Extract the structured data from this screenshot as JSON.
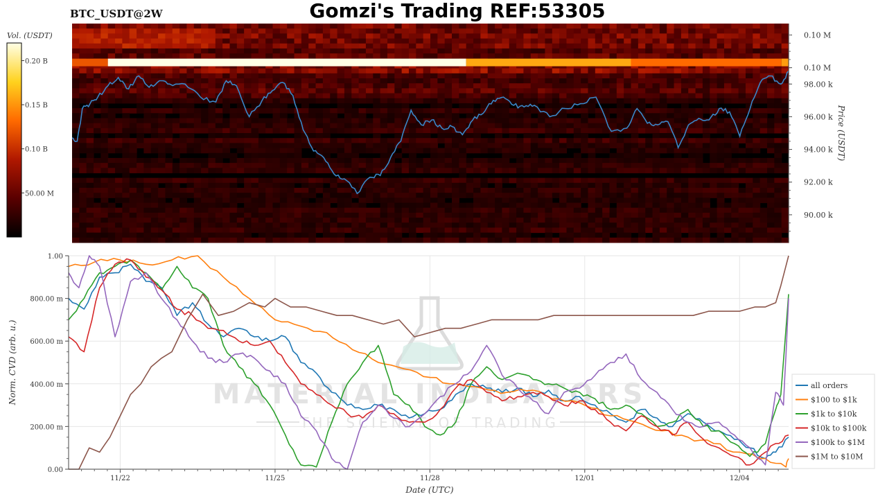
{
  "header": {
    "symbol": "BTC_USDT@2W",
    "title": "Gomzi's Trading REF:53305"
  },
  "watermark": {
    "line1": "MATERIAL INDICATORS",
    "line2": "THE SCIENCE OF TRADING",
    "color": "#e3e3e3"
  },
  "chart_data": [
    {
      "type": "heatmap",
      "colorbar": {
        "label": "Vol. (USDT)",
        "ticks": [
          "0.20 B",
          "0.15 B",
          "0.10 B",
          "50.00 M"
        ],
        "tick_values_b": [
          0.2,
          0.15,
          0.1,
          0.05
        ],
        "range_b": [
          0,
          0.22
        ],
        "colors": [
          "#000000",
          "#5a0000",
          "#b01800",
          "#ff6a00",
          "#ffd21e",
          "#ffffe6"
        ]
      },
      "ylabel": "Price (USDT)",
      "yticks": [
        "0.10 M",
        "0.10 M",
        "98.00 k",
        "96.00 k",
        "94.00 k",
        "92.00 k",
        "90.00 k"
      ],
      "ytick_values_k": [
        101,
        99,
        98,
        96,
        94,
        92,
        90
      ],
      "ylim_k": [
        88.3,
        101.7
      ],
      "price_line_color": "#3a87c8",
      "price_series_k": {
        "x_days": [
          0,
          0.1,
          0.2,
          0.35,
          0.5,
          0.7,
          0.9,
          1.1,
          1.3,
          1.5,
          1.7,
          1.9,
          2.2,
          2.5,
          2.8,
          3.0,
          3.2,
          3.45,
          3.7,
          3.9,
          4.1,
          4.3,
          4.5,
          4.7,
          4.9,
          5.1,
          5.3,
          5.55,
          5.8,
          6.0,
          6.2,
          6.4,
          6.6,
          6.8,
          7.0,
          7.2,
          7.4,
          7.6,
          7.8,
          8.0,
          8.2,
          8.4,
          8.6,
          8.8,
          9.0,
          9.3,
          9.6,
          9.9,
          10.2,
          10.5,
          10.8,
          11.0,
          11.2,
          11.4,
          11.6,
          11.8,
          12.0,
          12.2,
          12.4,
          12.6,
          12.8,
          13.0,
          13.2,
          13.4,
          13.6,
          13.8,
          13.95
        ],
        "y_k": [
          94.7,
          94.5,
          96.5,
          96.8,
          97.2,
          97.9,
          98.4,
          97.7,
          98.5,
          97.8,
          98.2,
          98.0,
          98.0,
          97.2,
          96.9,
          98.2,
          97.9,
          96.0,
          97.0,
          97.6,
          98.1,
          97.3,
          95.2,
          93.9,
          93.5,
          92.5,
          92.2,
          91.3,
          92.3,
          92.4,
          93.5,
          94.5,
          96.4,
          95.5,
          95.8,
          95.3,
          95.4,
          94.9,
          95.8,
          96.2,
          97.0,
          97.2,
          96.7,
          96.6,
          96.7,
          96.0,
          96.5,
          96.8,
          97.2,
          95.1,
          95.3,
          96.5,
          95.6,
          95.5,
          95.7,
          94.1,
          95.5,
          95.9,
          95.8,
          96.5,
          96.3,
          94.8,
          96.5,
          98.1,
          98.5,
          98.0,
          98.8
        ]
      }
    },
    {
      "type": "line",
      "xlabel": "Date (UTC)",
      "ylabel": "Norm. CVD (arb. u.)",
      "xticks": [
        "11/22",
        "11/25",
        "11/28",
        "12/01",
        "12/04"
      ],
      "xtick_days": [
        1,
        4,
        7,
        10,
        13
      ],
      "xlim_days": [
        0,
        13.95
      ],
      "yticks": [
        "1.00",
        "800.00 m",
        "600.00 m",
        "400.00 m",
        "200.00 m",
        "0.00"
      ],
      "ytick_values": [
        1.0,
        0.8,
        0.6,
        0.4,
        0.2,
        0.0
      ],
      "ylim": [
        0,
        1.0
      ],
      "grid": true,
      "legend_position": "right",
      "series": [
        {
          "name": "all orders",
          "color": "#1f77b4",
          "x": [
            0,
            0.3,
            0.6,
            0.9,
            1.2,
            1.5,
            1.8,
            2.1,
            2.4,
            2.7,
            3.0,
            3.3,
            3.6,
            3.9,
            4.2,
            4.5,
            4.8,
            5.1,
            5.4,
            5.7,
            6.0,
            6.3,
            6.6,
            6.9,
            7.2,
            7.5,
            7.8,
            8.1,
            8.4,
            8.7,
            9.0,
            9.3,
            9.6,
            9.9,
            10.2,
            10.5,
            10.8,
            11.1,
            11.4,
            11.7,
            12.0,
            12.3,
            12.6,
            12.9,
            13.2,
            13.5,
            13.7,
            13.95
          ],
          "y": [
            0.8,
            0.75,
            0.9,
            0.92,
            0.96,
            0.88,
            0.85,
            0.72,
            0.78,
            0.68,
            0.62,
            0.66,
            0.62,
            0.6,
            0.62,
            0.5,
            0.45,
            0.36,
            0.3,
            0.28,
            0.3,
            0.28,
            0.24,
            0.26,
            0.28,
            0.35,
            0.4,
            0.38,
            0.36,
            0.38,
            0.34,
            0.37,
            0.32,
            0.34,
            0.3,
            0.26,
            0.22,
            0.28,
            0.24,
            0.2,
            0.26,
            0.22,
            0.18,
            0.14,
            0.1,
            0.05,
            0.08,
            0.15
          ]
        },
        {
          "name": "$100 to $1k",
          "color": "#ff7f0e",
          "x": [
            0,
            0.5,
            1.0,
            1.5,
            2.0,
            2.5,
            3.0,
            3.5,
            4.0,
            4.5,
            5.0,
            5.5,
            6.0,
            6.5,
            7.0,
            7.5,
            8.0,
            8.5,
            9.0,
            9.5,
            10.0,
            10.5,
            11.0,
            11.5,
            12.0,
            12.5,
            13.0,
            13.5,
            13.9,
            13.95
          ],
          "y": [
            0.95,
            0.97,
            0.98,
            0.96,
            0.98,
            1.0,
            0.9,
            0.8,
            0.7,
            0.67,
            0.64,
            0.56,
            0.5,
            0.47,
            0.43,
            0.4,
            0.38,
            0.36,
            0.37,
            0.33,
            0.3,
            0.25,
            0.22,
            0.18,
            0.15,
            0.12,
            0.08,
            0.05,
            0.01,
            0.05
          ]
        },
        {
          "name": "$1k to $10k",
          "color": "#2ca02c",
          "x": [
            0,
            0.3,
            0.6,
            0.9,
            1.2,
            1.5,
            1.8,
            2.1,
            2.4,
            2.7,
            3.0,
            3.3,
            3.6,
            3.9,
            4.2,
            4.5,
            4.8,
            5.1,
            5.4,
            5.7,
            6.0,
            6.3,
            6.6,
            6.9,
            7.2,
            7.5,
            7.8,
            8.1,
            8.4,
            8.7,
            9.0,
            9.3,
            9.6,
            9.9,
            10.2,
            10.5,
            10.8,
            11.1,
            11.4,
            11.7,
            12.0,
            12.3,
            12.6,
            12.9,
            13.2,
            13.5,
            13.7,
            13.8,
            13.95
          ],
          "y": [
            0.7,
            0.8,
            0.92,
            0.95,
            0.98,
            0.92,
            0.84,
            0.95,
            0.85,
            0.8,
            0.58,
            0.48,
            0.4,
            0.3,
            0.16,
            0.02,
            0.01,
            0.22,
            0.4,
            0.5,
            0.58,
            0.35,
            0.3,
            0.2,
            0.16,
            0.22,
            0.4,
            0.48,
            0.42,
            0.45,
            0.42,
            0.4,
            0.38,
            0.36,
            0.33,
            0.28,
            0.3,
            0.26,
            0.2,
            0.22,
            0.28,
            0.2,
            0.18,
            0.12,
            0.06,
            0.12,
            0.28,
            0.35,
            0.82
          ]
        },
        {
          "name": "$10k to $100k",
          "color": "#d62728",
          "x": [
            0,
            0.3,
            0.6,
            0.9,
            1.2,
            1.5,
            1.8,
            2.1,
            2.4,
            2.7,
            3.0,
            3.3,
            3.6,
            3.9,
            4.2,
            4.5,
            4.8,
            5.1,
            5.4,
            5.7,
            6.0,
            6.3,
            6.6,
            6.9,
            7.2,
            7.5,
            7.8,
            8.1,
            8.4,
            8.7,
            9.0,
            9.3,
            9.6,
            9.9,
            10.2,
            10.5,
            10.8,
            11.1,
            11.4,
            11.7,
            12.0,
            12.3,
            12.6,
            12.9,
            13.2,
            13.5,
            13.7,
            13.95
          ],
          "y": [
            0.62,
            0.55,
            0.85,
            0.96,
            0.98,
            0.9,
            0.84,
            0.75,
            0.72,
            0.66,
            0.65,
            0.6,
            0.58,
            0.6,
            0.5,
            0.4,
            0.35,
            0.3,
            0.26,
            0.24,
            0.3,
            0.26,
            0.22,
            0.22,
            0.28,
            0.38,
            0.42,
            0.36,
            0.32,
            0.34,
            0.36,
            0.34,
            0.3,
            0.32,
            0.28,
            0.22,
            0.18,
            0.25,
            0.2,
            0.16,
            0.22,
            0.14,
            0.1,
            0.06,
            0.02,
            0.08,
            0.12,
            0.16
          ]
        },
        {
          "name": "$100k to $1M",
          "color": "#9467bd",
          "x": [
            0,
            0.2,
            0.4,
            0.6,
            0.9,
            1.2,
            1.5,
            1.8,
            2.1,
            2.4,
            2.7,
            3.0,
            3.3,
            3.6,
            3.9,
            4.2,
            4.5,
            4.8,
            5.1,
            5.4,
            5.7,
            6.0,
            6.3,
            6.6,
            6.9,
            7.2,
            7.5,
            7.8,
            8.1,
            8.4,
            8.7,
            9.0,
            9.3,
            9.6,
            9.9,
            10.2,
            10.5,
            10.8,
            11.1,
            11.4,
            11.7,
            12.0,
            12.3,
            12.6,
            12.9,
            13.2,
            13.5,
            13.7,
            13.85,
            13.95
          ],
          "y": [
            0.92,
            0.85,
            1.0,
            0.95,
            0.62,
            0.88,
            0.92,
            0.8,
            0.7,
            0.6,
            0.52,
            0.5,
            0.54,
            0.52,
            0.46,
            0.4,
            0.25,
            0.18,
            0.05,
            0.0,
            0.22,
            0.3,
            0.24,
            0.2,
            0.26,
            0.34,
            0.4,
            0.46,
            0.58,
            0.44,
            0.38,
            0.32,
            0.26,
            0.36,
            0.38,
            0.44,
            0.5,
            0.54,
            0.42,
            0.36,
            0.28,
            0.22,
            0.2,
            0.22,
            0.16,
            0.1,
            0.02,
            0.36,
            0.3,
            0.8
          ]
        },
        {
          "name": "$1M to $10M",
          "color": "#8c564b",
          "x": [
            0,
            0.2,
            0.4,
            0.6,
            0.8,
            1.0,
            1.2,
            1.4,
            1.6,
            1.8,
            2.0,
            2.3,
            2.6,
            2.9,
            3.2,
            3.5,
            3.8,
            4.0,
            4.3,
            4.6,
            4.9,
            5.2,
            5.5,
            5.8,
            6.1,
            6.4,
            6.7,
            7.0,
            7.3,
            7.6,
            7.9,
            8.2,
            8.5,
            8.8,
            9.1,
            9.4,
            9.7,
            10.0,
            10.3,
            10.6,
            10.9,
            11.2,
            11.5,
            11.8,
            12.1,
            12.4,
            12.7,
            13.0,
            13.3,
            13.5,
            13.7,
            13.8,
            13.95
          ],
          "y": [
            0.0,
            0.0,
            0.1,
            0.08,
            0.15,
            0.25,
            0.35,
            0.4,
            0.48,
            0.52,
            0.55,
            0.7,
            0.82,
            0.72,
            0.74,
            0.78,
            0.76,
            0.8,
            0.76,
            0.76,
            0.74,
            0.72,
            0.72,
            0.7,
            0.68,
            0.7,
            0.62,
            0.64,
            0.66,
            0.66,
            0.68,
            0.7,
            0.7,
            0.7,
            0.7,
            0.72,
            0.72,
            0.72,
            0.72,
            0.72,
            0.72,
            0.72,
            0.72,
            0.72,
            0.72,
            0.74,
            0.74,
            0.74,
            0.76,
            0.76,
            0.78,
            0.86,
            1.0
          ]
        }
      ]
    }
  ]
}
